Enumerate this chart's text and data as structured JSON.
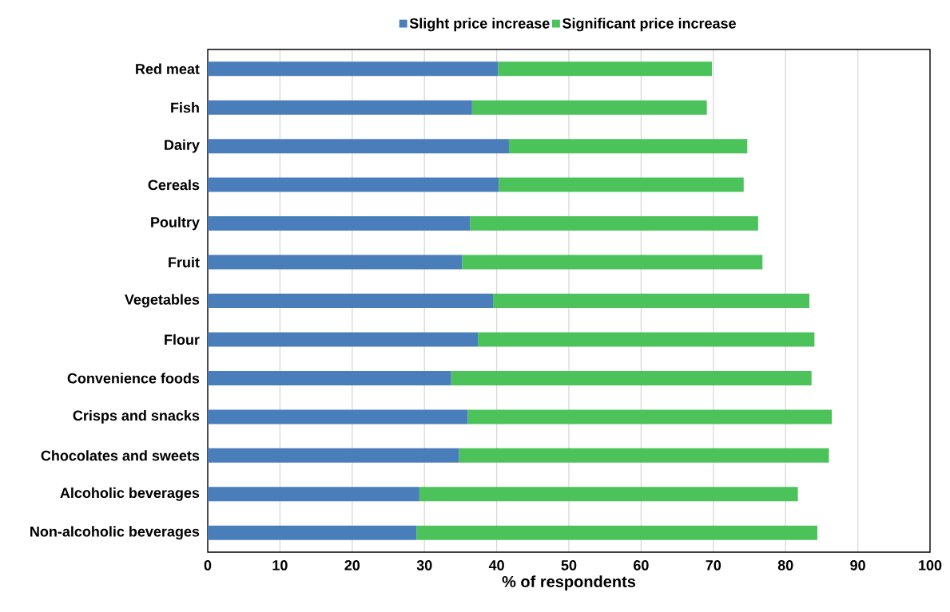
{
  "chart_data": {
    "type": "bar",
    "orientation": "horizontal",
    "stacked": true,
    "xlabel": "% of respondents",
    "categories": [
      "Red meat",
      "Fish",
      "Dairy",
      "Cereals",
      "Poultry",
      "Fruit",
      "Vegetables",
      "Flour",
      "Convenience foods",
      "Crisps and snacks",
      "Chocolates and sweets",
      "Alcoholic beverages",
      "Non-alcoholic beverages"
    ],
    "series": [
      {
        "name": "Slight price increase",
        "color": "#4a7ebb",
        "values": [
          40.2,
          36.6,
          41.7,
          40.3,
          36.3,
          35.2,
          39.5,
          37.4,
          33.7,
          36.0,
          34.8,
          29.3,
          28.9
        ]
      },
      {
        "name": "Significant price increase",
        "color": "#4bc35a",
        "values": [
          29.6,
          32.5,
          33.0,
          33.9,
          39.9,
          41.6,
          43.8,
          46.6,
          49.9,
          50.4,
          51.2,
          52.4,
          55.5
        ]
      }
    ],
    "xlim": [
      0,
      100
    ],
    "xticks": [
      0,
      10,
      20,
      30,
      40,
      50,
      60,
      70,
      80,
      90,
      100
    ],
    "grid": "x",
    "legend": "top"
  }
}
